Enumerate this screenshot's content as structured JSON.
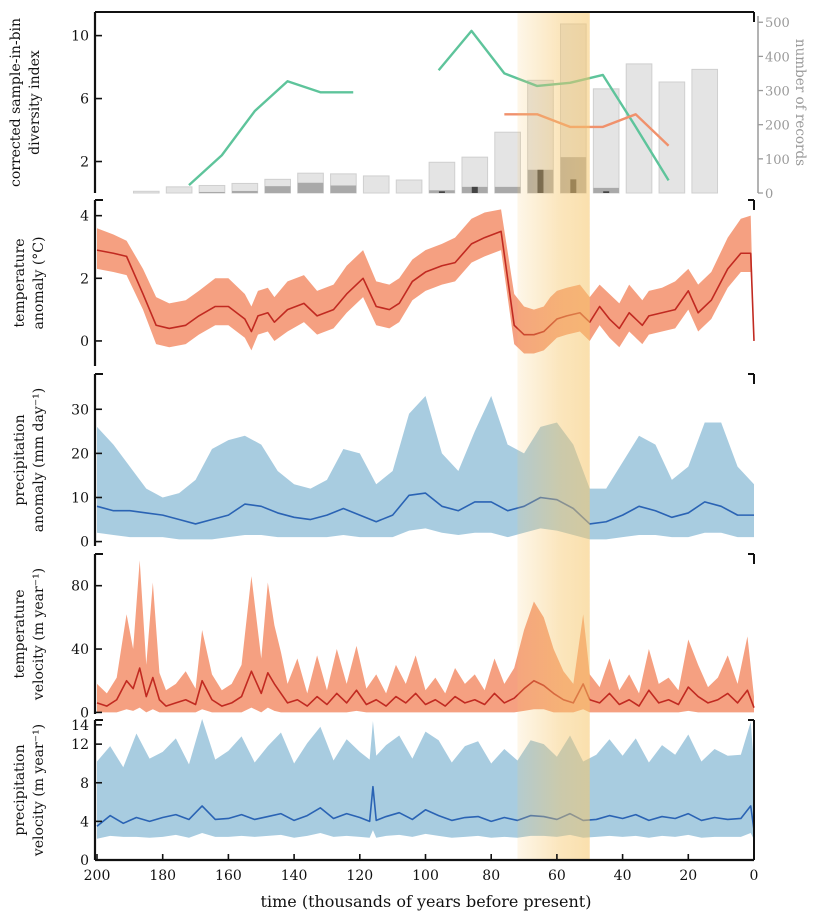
{
  "chart_data": {
    "type": "line",
    "x_label": "time (thousands of years before present)",
    "x_ticks": [
      "200",
      "180",
      "160",
      "140",
      "120",
      "100",
      "80",
      "60",
      "40",
      "20",
      "0"
    ],
    "x_range": [
      200,
      0
    ],
    "highlight_band": {
      "from": 72,
      "to": 50,
      "color": "#f6c66a"
    },
    "panels": [
      {
        "id": "diversity",
        "type": "bar+line",
        "ylabel": [
          "corrected sample-in-bin",
          "diversity index"
        ],
        "yticks": [
          "2",
          "6",
          "10"
        ],
        "ylim": [
          0,
          11.5
        ],
        "y2label": "number of records",
        "y2ticks": [
          "0",
          "100",
          "200",
          "300",
          "400",
          "500"
        ],
        "y2lim": [
          0,
          530
        ],
        "bars": [
          {
            "x": 185,
            "total": 5,
            "dark": 0,
            "black": 0
          },
          {
            "x": 175,
            "total": 18,
            "dark": 0,
            "black": 0
          },
          {
            "x": 165,
            "total": 22,
            "dark": 3,
            "black": 0
          },
          {
            "x": 155,
            "total": 28,
            "dark": 6,
            "black": 0
          },
          {
            "x": 145,
            "total": 40,
            "dark": 20,
            "black": 0
          },
          {
            "x": 135,
            "total": 58,
            "dark": 30,
            "black": 0
          },
          {
            "x": 125,
            "total": 56,
            "dark": 22,
            "black": 0
          },
          {
            "x": 115,
            "total": 50,
            "dark": 0,
            "black": 0
          },
          {
            "x": 105,
            "total": 38,
            "dark": 0,
            "black": 0
          },
          {
            "x": 95,
            "total": 90,
            "dark": 8,
            "black": 5
          },
          {
            "x": 85,
            "total": 105,
            "dark": 18,
            "black": 18
          },
          {
            "x": 75,
            "total": 178,
            "dark": 18,
            "black": 0
          },
          {
            "x": 65,
            "total": 330,
            "dark": 68,
            "black": 68
          },
          {
            "x": 55,
            "total": 495,
            "dark": 105,
            "black": 40
          },
          {
            "x": 45,
            "total": 305,
            "dark": 15,
            "black": 5
          },
          {
            "x": 35,
            "total": 378,
            "dark": 0,
            "black": 0
          },
          {
            "x": 25,
            "total": 325,
            "dark": 0,
            "black": 0
          },
          {
            "x": 15,
            "total": 362,
            "dark": 0,
            "black": 0
          }
        ],
        "series": [
          {
            "color": "#5ec49b",
            "x": [
              172,
              162,
              152,
              142,
              132,
              122
            ],
            "y": [
              0.5,
              2.4,
              5.2,
              7.1,
              6.4,
              6.4
            ]
          },
          {
            "color": "#5ec49b",
            "x": [
              96,
              86,
              76,
              66,
              56,
              46,
              36,
              26
            ],
            "y": [
              7.8,
              10.3,
              7.6,
              6.8,
              7.0,
              7.5,
              4.2,
              0.8
            ]
          },
          {
            "color": "#f0916c",
            "x": [
              76,
              66,
              56,
              46,
              36,
              26
            ],
            "y": [
              5.0,
              5.0,
              4.2,
              4.2,
              5.0,
              3.0
            ]
          }
        ]
      },
      {
        "id": "temperature_anomaly",
        "type": "area+line",
        "ylabel": [
          "temperature",
          "anomaly (°C)"
        ],
        "yticks": [
          "0",
          "2",
          "4"
        ],
        "ylim": [
          -0.8,
          4.5
        ],
        "line_color": "#c12a21",
        "band_color": "#f5a081",
        "x": [
          200,
          195,
          191,
          186,
          182,
          178,
          173,
          169,
          164,
          160,
          155,
          153,
          151,
          148,
          146,
          142,
          137,
          133,
          128,
          124,
          119,
          115,
          111,
          108,
          104,
          100,
          95,
          91,
          86,
          82,
          77,
          73,
          70,
          67,
          64,
          62,
          60,
          57,
          53,
          50,
          47,
          44,
          41,
          38,
          34,
          32,
          28,
          24,
          20,
          17,
          13,
          8,
          4,
          1,
          0
        ],
        "y": [
          2.9,
          2.8,
          2.7,
          1.5,
          0.5,
          0.4,
          0.5,
          0.8,
          1.1,
          1.1,
          0.7,
          0.3,
          0.8,
          0.9,
          0.6,
          1.0,
          1.2,
          0.8,
          1.0,
          1.5,
          2.0,
          1.1,
          1.0,
          1.2,
          1.9,
          2.2,
          2.4,
          2.5,
          3.1,
          3.3,
          3.5,
          0.5,
          0.2,
          0.2,
          0.3,
          0.5,
          0.7,
          0.8,
          0.9,
          0.6,
          1.1,
          0.7,
          0.4,
          0.9,
          0.5,
          0.8,
          0.9,
          1.0,
          1.6,
          0.9,
          1.3,
          2.3,
          2.8,
          2.8,
          0.0
        ],
        "lower": [
          2.3,
          2.2,
          2.1,
          1.0,
          -0.1,
          -0.2,
          -0.1,
          0.2,
          0.5,
          0.5,
          0.1,
          -0.3,
          0.2,
          0.3,
          0.0,
          0.3,
          0.6,
          0.2,
          0.4,
          0.9,
          1.4,
          0.5,
          0.4,
          0.6,
          1.3,
          1.6,
          1.8,
          1.9,
          2.5,
          2.7,
          2.9,
          -0.1,
          -0.4,
          -0.4,
          -0.3,
          -0.1,
          0.1,
          0.2,
          0.3,
          0.0,
          0.5,
          0.1,
          -0.2,
          0.3,
          -0.1,
          0.2,
          0.3,
          0.4,
          1.0,
          0.3,
          0.7,
          1.7,
          2.2,
          2.2,
          0.0
        ],
        "upper": [
          3.6,
          3.4,
          3.2,
          2.3,
          1.4,
          1.2,
          1.3,
          1.6,
          2.0,
          2.0,
          1.5,
          1.1,
          1.6,
          1.7,
          1.4,
          1.9,
          2.1,
          1.6,
          1.8,
          2.4,
          2.9,
          1.9,
          1.8,
          2.0,
          2.6,
          2.9,
          3.1,
          3.3,
          3.9,
          4.1,
          4.2,
          1.5,
          1.1,
          1.0,
          1.1,
          1.4,
          1.6,
          1.7,
          1.8,
          1.4,
          1.8,
          1.5,
          1.2,
          1.8,
          1.3,
          1.6,
          1.7,
          1.9,
          2.3,
          1.8,
          2.2,
          3.3,
          3.9,
          4.0,
          0.0
        ]
      },
      {
        "id": "precipitation_anomaly",
        "type": "area+line",
        "ylabel": [
          "precipitation",
          "anomaly (mm day⁻¹)"
        ],
        "yticks": [
          "0",
          "10",
          "20",
          "30"
        ],
        "ylim": [
          -1,
          38
        ],
        "line_color": "#2a63b4",
        "band_color": "#a8cce0",
        "x": [
          200,
          195,
          190,
          185,
          180,
          175,
          170,
          165,
          160,
          155,
          150,
          145,
          140,
          135,
          130,
          125,
          120,
          115,
          110,
          105,
          100,
          95,
          90,
          85,
          80,
          75,
          70,
          65,
          60,
          55,
          50,
          45,
          40,
          35,
          30,
          25,
          20,
          15,
          10,
          5,
          0
        ],
        "y": [
          8,
          7,
          7,
          6.5,
          6,
          5,
          4,
          5,
          6,
          8.5,
          8,
          6.5,
          5.5,
          5,
          6,
          7.5,
          6,
          4.5,
          6,
          10.5,
          11,
          8,
          7,
          9,
          9,
          7,
          8,
          10,
          9.5,
          7.5,
          4,
          4.5,
          6,
          8,
          7,
          5.5,
          6.5,
          9,
          8,
          6,
          6
        ],
        "lower": [
          2,
          1.5,
          1,
          1,
          1,
          0.5,
          0.5,
          0.5,
          1,
          1.5,
          1.5,
          1,
          1,
          1,
          1,
          1.5,
          1,
          1,
          1,
          2.5,
          3,
          2,
          1.5,
          2,
          2,
          1,
          2,
          3,
          2.5,
          1.5,
          0.5,
          0.5,
          1,
          1.5,
          1.5,
          1,
          1,
          2,
          2,
          1,
          1
        ],
        "upper": [
          26,
          22,
          17,
          12,
          10,
          11,
          14,
          21,
          23,
          24,
          22,
          16,
          13,
          12,
          14,
          21,
          20,
          13,
          16,
          29,
          33,
          20,
          16,
          25,
          33,
          22,
          20,
          26,
          27,
          22,
          12,
          12,
          18,
          24,
          22,
          14,
          17,
          27,
          27,
          17,
          13
        ]
      },
      {
        "id": "temperature_velocity",
        "type": "area+line",
        "ylabel": [
          "temperature",
          "velocity (m year⁻¹)"
        ],
        "yticks": [
          "0",
          "40",
          "80"
        ],
        "ylim": [
          -1,
          100
        ],
        "line_color": "#c12a21",
        "band_color": "#f5a081",
        "x": [
          200,
          197,
          194,
          191,
          189,
          187,
          185,
          183,
          181,
          179,
          176,
          173,
          170,
          168,
          165,
          162,
          159,
          156,
          153,
          150,
          148,
          146,
          144,
          142,
          139,
          136,
          133,
          130,
          127,
          124,
          121,
          118,
          115,
          112,
          109,
          106,
          103,
          100,
          97,
          94,
          91,
          88,
          85,
          82,
          79,
          76,
          73,
          70,
          67,
          64,
          61,
          58,
          55,
          52,
          50,
          47,
          44,
          41,
          38,
          35,
          32,
          29,
          26,
          23,
          20,
          17,
          14,
          11,
          8,
          5,
          2,
          0
        ],
        "y": [
          6,
          4,
          8,
          20,
          15,
          28,
          10,
          22,
          8,
          4,
          6,
          8,
          5,
          20,
          8,
          4,
          6,
          10,
          26,
          12,
          25,
          18,
          12,
          6,
          8,
          4,
          10,
          5,
          12,
          6,
          14,
          5,
          8,
          4,
          10,
          6,
          12,
          5,
          8,
          4,
          10,
          6,
          8,
          5,
          12,
          6,
          9,
          15,
          20,
          17,
          12,
          8,
          6,
          18,
          8,
          6,
          12,
          5,
          8,
          4,
          14,
          6,
          8,
          5,
          16,
          10,
          6,
          8,
          12,
          6,
          14,
          3
        ],
        "lower": [
          0,
          0,
          0,
          2,
          1,
          3,
          0,
          2,
          0,
          0,
          0,
          0,
          0,
          2,
          0,
          0,
          0,
          0,
          3,
          0,
          3,
          1,
          0,
          0,
          0,
          0,
          0,
          0,
          0,
          0,
          1,
          0,
          0,
          0,
          0,
          0,
          0,
          0,
          0,
          0,
          0,
          0,
          0,
          0,
          0,
          0,
          0,
          1,
          2,
          2,
          0,
          0,
          0,
          2,
          0,
          0,
          0,
          0,
          0,
          0,
          0,
          0,
          0,
          0,
          1,
          0,
          0,
          0,
          0,
          0,
          0,
          0
        ],
        "upper": [
          18,
          12,
          22,
          62,
          40,
          96,
          30,
          82,
          25,
          14,
          18,
          26,
          15,
          52,
          24,
          14,
          18,
          30,
          86,
          34,
          82,
          55,
          38,
          18,
          34,
          12,
          36,
          14,
          40,
          18,
          42,
          15,
          24,
          12,
          30,
          18,
          36,
          14,
          22,
          12,
          28,
          18,
          24,
          14,
          34,
          18,
          28,
          52,
          70,
          60,
          40,
          26,
          18,
          62,
          24,
          16,
          34,
          14,
          24,
          12,
          40,
          18,
          22,
          14,
          46,
          30,
          16,
          22,
          36,
          18,
          48,
          10
        ]
      },
      {
        "id": "precipitation_velocity",
        "type": "area+line",
        "ylabel": [
          "precipitation",
          "velocity (m year⁻¹)"
        ],
        "yticks": [
          "0",
          "4",
          "8",
          "12",
          "14"
        ],
        "ylim": [
          0,
          14.5
        ],
        "line_color": "#2a63b4",
        "band_color": "#a8cce0",
        "x": [
          200,
          196,
          192,
          188,
          184,
          180,
          176,
          172,
          168,
          164,
          160,
          156,
          152,
          148,
          144,
          140,
          136,
          132,
          128,
          124,
          120,
          117,
          116,
          115,
          112,
          108,
          104,
          100,
          96,
          92,
          88,
          84,
          80,
          76,
          72,
          68,
          64,
          60,
          56,
          52,
          48,
          44,
          40,
          36,
          32,
          28,
          24,
          20,
          16,
          12,
          8,
          4,
          1,
          0
        ],
        "y": [
          3.5,
          4.6,
          3.8,
          4.4,
          4.0,
          4.4,
          4.7,
          4.2,
          5.6,
          4.2,
          4.3,
          4.7,
          4.2,
          4.5,
          4.8,
          4.1,
          4.6,
          5.4,
          4.3,
          4.8,
          4.4,
          4.0,
          7.6,
          4.1,
          4.5,
          4.9,
          4.2,
          5.2,
          4.6,
          4.1,
          4.4,
          4.5,
          4.0,
          4.4,
          4.1,
          4.6,
          4.5,
          4.2,
          4.8,
          4.1,
          4.2,
          4.6,
          4.3,
          4.7,
          4.1,
          4.5,
          4.3,
          4.8,
          4.1,
          4.4,
          4.2,
          4.3,
          5.6,
          3.1
        ],
        "lower": [
          2.2,
          2.5,
          2.4,
          2.4,
          2.3,
          2.4,
          2.6,
          2.3,
          2.8,
          2.4,
          2.4,
          2.5,
          2.4,
          2.5,
          2.6,
          2.3,
          2.5,
          2.8,
          2.4,
          2.5,
          2.4,
          2.3,
          3.1,
          2.3,
          2.5,
          2.6,
          2.4,
          2.7,
          2.5,
          2.3,
          2.4,
          2.5,
          2.3,
          2.4,
          2.3,
          2.5,
          2.5,
          2.4,
          2.6,
          2.3,
          2.4,
          2.5,
          2.4,
          2.5,
          2.3,
          2.5,
          2.4,
          2.6,
          2.3,
          2.4,
          2.4,
          2.4,
          2.8,
          2.1
        ],
        "upper": [
          10.2,
          11.8,
          9.6,
          13.1,
          10.5,
          11.2,
          12.6,
          9.9,
          14.6,
          10.4,
          11.3,
          12.8,
          10.1,
          11.8,
          13.2,
          10.0,
          12.1,
          13.8,
          10.3,
          12.5,
          11.2,
          10.4,
          14.4,
          10.8,
          11.9,
          12.9,
          10.5,
          13.3,
          12.4,
          10.1,
          11.8,
          12.3,
          10.0,
          11.5,
          10.3,
          12.4,
          12.0,
          10.7,
          12.9,
          10.2,
          10.9,
          12.5,
          10.8,
          12.6,
          10.1,
          11.9,
          10.9,
          13.0,
          10.2,
          11.5,
          10.8,
          10.9,
          14.3,
          9.8
        ]
      }
    ]
  }
}
